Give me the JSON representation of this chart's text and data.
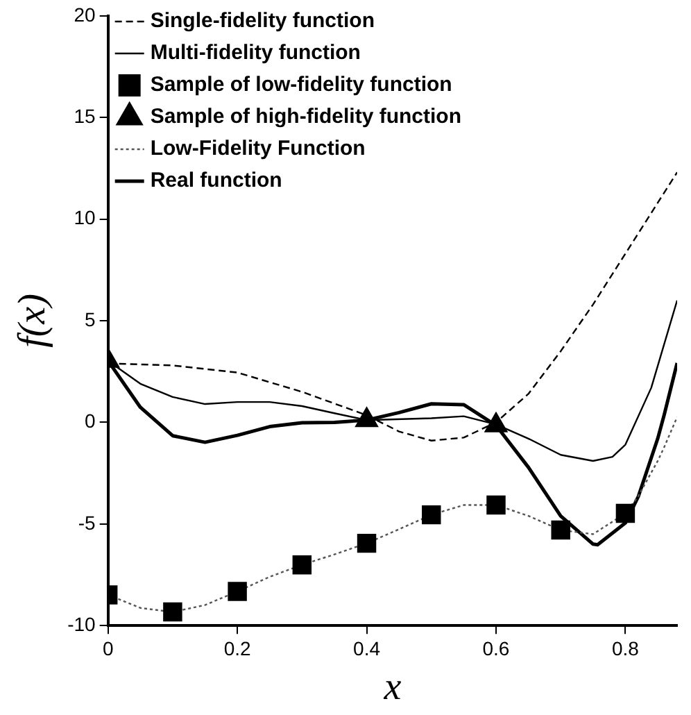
{
  "chart_data": {
    "type": "line",
    "xlabel": "x",
    "ylabel": "f(x)",
    "xlim": [
      0,
      0.88
    ],
    "xticks": [
      0,
      0.2,
      0.4,
      0.6,
      0.8
    ],
    "ylim": [
      -10,
      20
    ],
    "yticks": [
      -10,
      -5,
      0,
      5,
      10,
      15,
      20
    ],
    "grid": false,
    "legend": "top left",
    "series": [
      {
        "name": "Single-fidelity function",
        "type": "line",
        "line_style": "dashed",
        "color": "#000000",
        "x": [
          0,
          0.1,
          0.2,
          0.3,
          0.4,
          0.45,
          0.5,
          0.55,
          0.6,
          0.65,
          0.7,
          0.75,
          0.8,
          0.85,
          0.88
        ],
        "values": [
          2.9,
          2.8,
          2.45,
          1.5,
          0.35,
          -0.45,
          -0.9,
          -0.75,
          0,
          1.4,
          3.5,
          5.8,
          8.3,
          10.8,
          12.3
        ]
      },
      {
        "name": "Multi-fidelity function",
        "type": "line",
        "line_style": "solid",
        "color": "#000000",
        "x": [
          0,
          0.05,
          0.1,
          0.15,
          0.2,
          0.25,
          0.3,
          0.35,
          0.4,
          0.5,
          0.55,
          0.6,
          0.65,
          0.7,
          0.75,
          0.78,
          0.8,
          0.84,
          0.88
        ],
        "values": [
          3.03,
          1.9,
          1.25,
          0.9,
          1.0,
          1.0,
          0.8,
          0.45,
          0.11,
          0.2,
          0.3,
          -0.1,
          -0.8,
          -1.6,
          -1.9,
          -1.7,
          -1.1,
          1.7,
          6.0
        ]
      },
      {
        "name": "Sample of low-fidelity function",
        "type": "scatter",
        "marker": "square",
        "color": "#000000",
        "x": [
          0,
          0.1,
          0.2,
          0.3,
          0.4,
          0.5,
          0.6,
          0.7,
          0.8
        ],
        "values": [
          -8.49,
          -9.33,
          -8.32,
          -7.01,
          -5.95,
          -4.55,
          -4.07,
          -5.3,
          -4.48
        ]
      },
      {
        "name": "Sample of high-fidelity function",
        "type": "scatter",
        "marker": "triangle",
        "color": "#000000",
        "x": [
          0,
          0.4,
          0.6
        ],
        "values": [
          3.03,
          0.11,
          -0.15
        ]
      },
      {
        "name": "Low-Fidelity Function",
        "type": "line",
        "line_style": "dotted",
        "color": "#555555",
        "x": [
          0,
          0.05,
          0.1,
          0.15,
          0.2,
          0.25,
          0.3,
          0.35,
          0.4,
          0.45,
          0.5,
          0.55,
          0.6,
          0.65,
          0.7,
          0.75,
          0.8,
          0.82,
          0.85,
          0.86,
          0.88
        ],
        "values": [
          -8.49,
          -9.13,
          -9.33,
          -8.99,
          -8.32,
          -7.6,
          -7.01,
          -6.5,
          -5.95,
          -5.26,
          -4.55,
          -4.07,
          -4.07,
          -4.6,
          -5.3,
          -5.5,
          -4.48,
          -3.63,
          -1.9,
          -1.22,
          0.26
        ]
      },
      {
        "name": "Real function",
        "type": "line",
        "line_style": "solid",
        "color": "#000000",
        "x": [
          0,
          0.05,
          0.1,
          0.15,
          0.2,
          0.25,
          0.3,
          0.35,
          0.4,
          0.45,
          0.5,
          0.55,
          0.6,
          0.65,
          0.7,
          0.75,
          0.757,
          0.8,
          0.82,
          0.85,
          0.86,
          0.88
        ],
        "values": [
          3.03,
          0.74,
          -0.66,
          -0.98,
          -0.64,
          -0.21,
          -0.02,
          0.0,
          0.11,
          0.48,
          0.91,
          0.87,
          -0.15,
          -2.21,
          -4.61,
          -5.99,
          -6.02,
          -4.95,
          -3.65,
          -0.8,
          0.37,
          2.92
        ]
      }
    ]
  }
}
